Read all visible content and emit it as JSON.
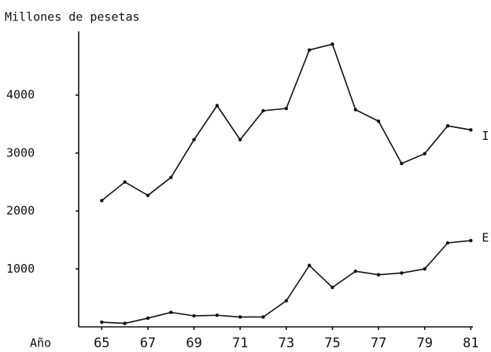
{
  "chart_data": {
    "type": "line",
    "title": "Millones de pesetas",
    "x_label": "Año",
    "x": [
      65,
      66,
      67,
      68,
      69,
      70,
      71,
      72,
      73,
      74,
      75,
      76,
      77,
      78,
      79,
      80,
      81
    ],
    "series": [
      {
        "name": "I",
        "color": "#111111",
        "values": [
          2180,
          2500,
          2270,
          2580,
          3230,
          3820,
          3230,
          3730,
          3770,
          4780,
          4880,
          3750,
          3550,
          2820,
          2990,
          3470,
          3400
        ]
      },
      {
        "name": "E",
        "color": "#111111",
        "values": [
          80,
          60,
          150,
          250,
          190,
          200,
          170,
          170,
          450,
          1060,
          680,
          960,
          900,
          930,
          1000,
          1450,
          1490
        ]
      }
    ],
    "xlim": [
      64,
      81.5
    ],
    "xticks": [
      65,
      67,
      69,
      71,
      73,
      75,
      77,
      79,
      81
    ],
    "ylim": [
      0,
      5100
    ],
    "yticks": [
      1000,
      2000,
      3000,
      4000
    ],
    "grid": false
  }
}
